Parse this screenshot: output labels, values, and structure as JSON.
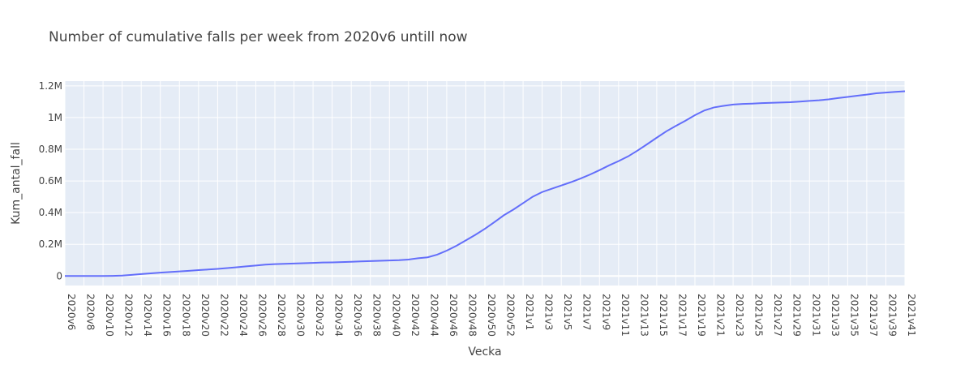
{
  "chart_data": {
    "type": "line",
    "title": "Number of cumulative falls per week from 2020v6 untill now",
    "xlabel": "Vecka",
    "ylabel": "Kum_antal_fall",
    "x_tick_labels": [
      "2020v6",
      "2020v8",
      "2020v10",
      "2020v12",
      "2020v14",
      "2020v16",
      "2020v18",
      "2020v20",
      "2020v22",
      "2020v24",
      "2020v26",
      "2020v28",
      "2020v30",
      "2020v32",
      "2020v34",
      "2020v36",
      "2020v38",
      "2020v40",
      "2020v42",
      "2020v44",
      "2020v46",
      "2020v48",
      "2020v50",
      "2020v52",
      "2021v1",
      "2021v3",
      "2021v5",
      "2021v7",
      "2021v9",
      "2021v11",
      "2021v13",
      "2021v15",
      "2021v17",
      "2021v19",
      "2021v21",
      "2021v23",
      "2021v25",
      "2021v27",
      "2021v29",
      "2021v31",
      "2021v33",
      "2021v35",
      "2021v37",
      "2021v39",
      "2021v41"
    ],
    "y_tick_labels": [
      "0",
      "0.2M",
      "0.4M",
      "0.6M",
      "0.8M",
      "1M",
      "1.2M"
    ],
    "y_tick_values": [
      0,
      200000,
      400000,
      600000,
      800000,
      1000000,
      1200000
    ],
    "ylim": [
      -60000,
      1230000
    ],
    "grid": true,
    "legend": false,
    "line_color": "#636efa",
    "plot_bg": "#e5ecf6",
    "x": [
      "2020v6",
      "2020v7",
      "2020v8",
      "2020v9",
      "2020v10",
      "2020v11",
      "2020v12",
      "2020v13",
      "2020v14",
      "2020v15",
      "2020v16",
      "2020v17",
      "2020v18",
      "2020v19",
      "2020v20",
      "2020v21",
      "2020v22",
      "2020v23",
      "2020v24",
      "2020v25",
      "2020v26",
      "2020v27",
      "2020v28",
      "2020v29",
      "2020v30",
      "2020v31",
      "2020v32",
      "2020v33",
      "2020v34",
      "2020v35",
      "2020v36",
      "2020v37",
      "2020v38",
      "2020v39",
      "2020v40",
      "2020v41",
      "2020v42",
      "2020v43",
      "2020v44",
      "2020v45",
      "2020v46",
      "2020v47",
      "2020v48",
      "2020v49",
      "2020v50",
      "2020v51",
      "2020v52",
      "2020v53",
      "2021v1",
      "2021v2",
      "2021v3",
      "2021v4",
      "2021v5",
      "2021v6",
      "2021v7",
      "2021v8",
      "2021v9",
      "2021v10",
      "2021v11",
      "2021v12",
      "2021v13",
      "2021v14",
      "2021v15",
      "2021v16",
      "2021v17",
      "2021v18",
      "2021v19",
      "2021v20",
      "2021v21",
      "2021v22",
      "2021v23",
      "2021v24",
      "2021v25",
      "2021v26",
      "2021v27",
      "2021v28",
      "2021v29",
      "2021v30",
      "2021v31",
      "2021v32",
      "2021v33",
      "2021v34",
      "2021v35",
      "2021v36",
      "2021v37",
      "2021v38",
      "2021v39",
      "2021v40",
      "2021v41"
    ],
    "y": [
      1,
      10,
      30,
      70,
      200,
      900,
      2500,
      7000,
      12000,
      17000,
      21000,
      25000,
      29000,
      33000,
      37000,
      41000,
      45000,
      50000,
      55000,
      61000,
      66000,
      72000,
      75000,
      77000,
      79000,
      81000,
      83000,
      85000,
      86000,
      88000,
      90000,
      92000,
      94000,
      96000,
      98000,
      100000,
      104000,
      112000,
      118000,
      135000,
      160000,
      190000,
      225000,
      260000,
      298000,
      340000,
      384000,
      420000,
      460000,
      500000,
      530000,
      551000,
      571000,
      592000,
      615000,
      640000,
      668000,
      698000,
      725000,
      755000,
      792000,
      832000,
      873000,
      913000,
      947000,
      980000,
      1015000,
      1045000,
      1064000,
      1074000,
      1082000,
      1086000,
      1088000,
      1091000,
      1093000,
      1095000,
      1097000,
      1101000,
      1105000,
      1109000,
      1115000,
      1123000,
      1130000,
      1138000,
      1145000,
      1153000,
      1158000,
      1162000,
      1166000
    ]
  }
}
